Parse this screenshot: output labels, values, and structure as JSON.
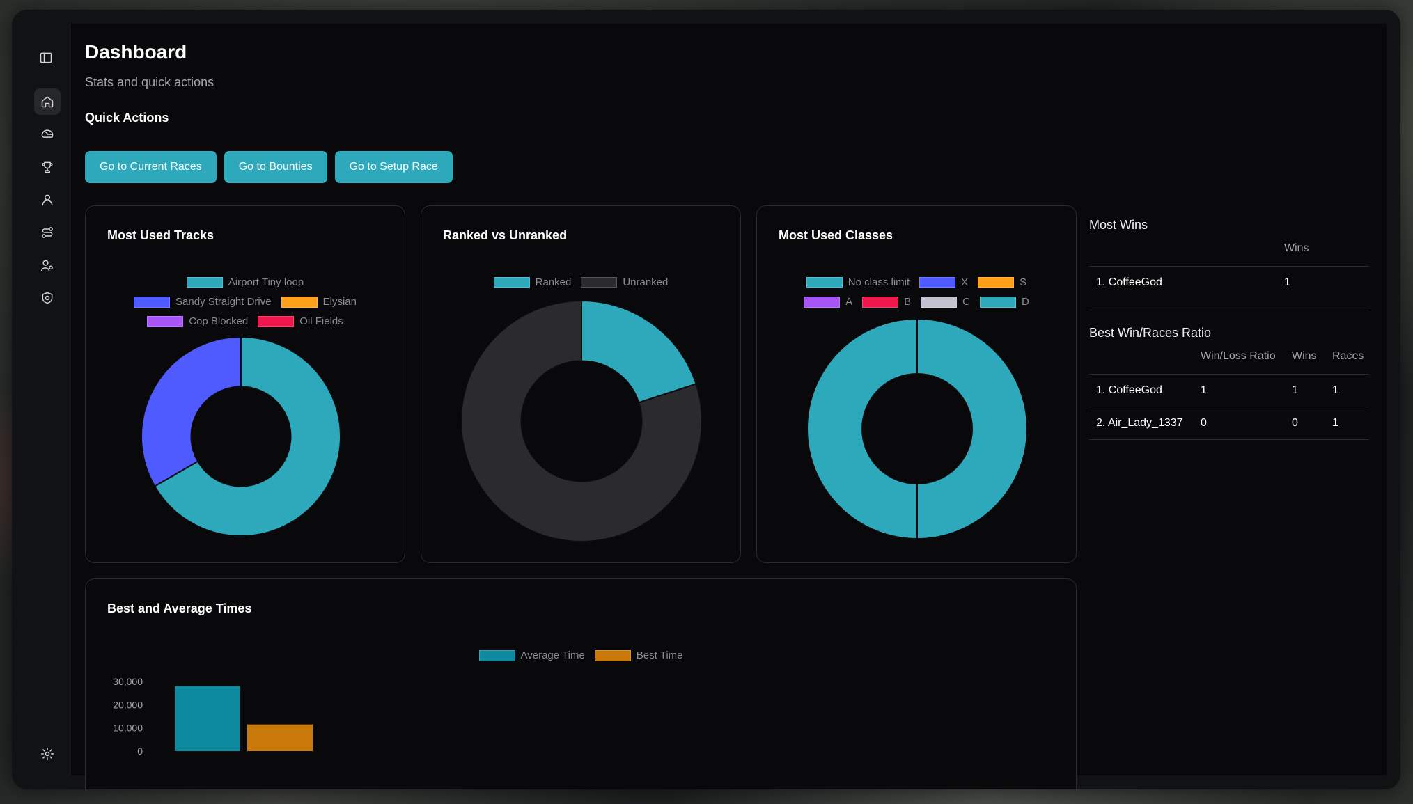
{
  "header": {
    "title": "Dashboard",
    "subtitle": "Stats and quick actions"
  },
  "quick_actions": {
    "title": "Quick Actions",
    "buttons": [
      "Go to Current Races",
      "Go to Bounties",
      "Go to Setup Race"
    ]
  },
  "sidebar": {
    "icons": [
      "panel-toggle-icon",
      "home-icon",
      "helmet-icon",
      "trophy-icon",
      "user-icon",
      "route-icon",
      "users-icon",
      "shield-icon",
      "gear-icon"
    ]
  },
  "colors": {
    "accent": "#2ea8bb",
    "blue": "#4f5bff",
    "orange": "#ff9f1a",
    "purple": "#a855f7",
    "red": "#f0174f",
    "gray": "#c3c2d0",
    "dark": "#2b2b2d",
    "avg_bar": "#0e8a9e",
    "best_bar": "#c9780a"
  },
  "chart_data": [
    {
      "type": "pie",
      "title": "Most Used Tracks",
      "labels": [
        "Airport Tiny loop",
        "Sandy Straight Drive",
        "Elysian",
        "Cop Blocked",
        "Oil Fields"
      ],
      "values": [
        2,
        1,
        0,
        0,
        0
      ],
      "colors": [
        "#2ea8bb",
        "#4f5bff",
        "#ff9f1a",
        "#a855f7",
        "#f0174f"
      ],
      "donut": true
    },
    {
      "type": "pie",
      "title": "Ranked vs Unranked",
      "labels": [
        "Ranked",
        "Unranked"
      ],
      "values": [
        1,
        4
      ],
      "colors": [
        "#2ea8bb",
        "#2b2b2d"
      ],
      "donut": true
    },
    {
      "type": "pie",
      "title": "Most Used Classes",
      "labels": [
        "No class limit",
        "X",
        "S",
        "A",
        "B",
        "C",
        "D"
      ],
      "values": [
        1,
        0,
        0,
        0,
        0,
        0,
        1
      ],
      "colors": [
        "#2ea8bb",
        "#4f5bff",
        "#ff9f1a",
        "#a855f7",
        "#f0174f",
        "#c3c2d0",
        "#2ea8bb"
      ],
      "donut": true
    },
    {
      "type": "bar",
      "title": "Best and Average Times",
      "series": [
        {
          "name": "Average Time",
          "values": [
            28000
          ]
        },
        {
          "name": "Best Time",
          "values": [
            11500
          ]
        }
      ],
      "yticks": [
        "30,000",
        "20,000",
        "10,000",
        "0"
      ],
      "ylim": [
        0,
        30000
      ]
    }
  ],
  "most_wins": {
    "title": "Most Wins",
    "headers": [
      "",
      "Wins"
    ],
    "rows": [
      {
        "name": "1. CoffeeGod",
        "wins": "1"
      }
    ]
  },
  "best_ratio": {
    "title": "Best Win/Races Ratio",
    "headers": [
      "",
      "Win/Loss Ratio",
      "Wins",
      "Races"
    ],
    "rows": [
      {
        "name": "1. CoffeeGod",
        "ratio": "1",
        "wins": "1",
        "races": "1"
      },
      {
        "name": "2. Air_Lady_1337",
        "ratio": "0",
        "wins": "0",
        "races": "1"
      }
    ]
  }
}
